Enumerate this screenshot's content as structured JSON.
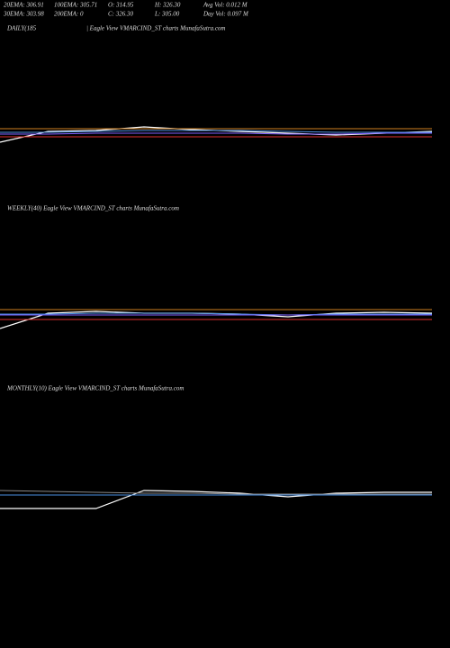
{
  "header": {
    "rows": [
      [
        "20EMA: 306.91",
        "100EMA: 305.71",
        "O: 314.95",
        "H: 326.30",
        "Avg Vol: 0.012  M"
      ],
      [
        "30EMA: 303.98",
        "200EMA: 0",
        "C: 326.30",
        "L: 305.00",
        "Day Vol: 0.097  M"
      ]
    ]
  },
  "chart_data": [
    {
      "type": "line",
      "title": "DAILY(185",
      "subtitle": "| Eagle  View  VMARCIND_ST charts MunafaSutra.com",
      "x": [
        0,
        1,
        2,
        3,
        4,
        5,
        6,
        7,
        8,
        9
      ],
      "xlim": [
        0,
        9
      ],
      "ylim": [
        250,
        350
      ],
      "series": [
        {
          "color": "#ffffff",
          "values": [
            292,
            304,
            305,
            309,
            306,
            304,
            302,
            300,
            302,
            304
          ]
        },
        {
          "color": "#4a90e2",
          "values": [
            303,
            303,
            304,
            305,
            305,
            305,
            304,
            303,
            303,
            303
          ]
        },
        {
          "color": "#d08020",
          "values": [
            307,
            307,
            307,
            307,
            307,
            307,
            307,
            307,
            307,
            307
          ]
        },
        {
          "color": "#e03030",
          "values": [
            298,
            298,
            298,
            298,
            298,
            298,
            298,
            298,
            298,
            298
          ]
        },
        {
          "color": "#8060ff",
          "values": [
            301,
            301,
            302,
            302,
            302,
            302,
            301,
            301,
            302,
            302
          ]
        }
      ]
    },
    {
      "type": "line",
      "title": "WEEKLY(40) Eagle  View  VMARCIND_ST charts MunafaSutra.com",
      "x": [
        0,
        1,
        2,
        3,
        4,
        5,
        6,
        7,
        8,
        9
      ],
      "xlim": [
        0,
        9
      ],
      "ylim": [
        250,
        350
      ],
      "series": [
        {
          "color": "#ffffff",
          "values": [
            285,
            302,
            304,
            302,
            302,
            301,
            298,
            302,
            303,
            302
          ]
        },
        {
          "color": "#4a90e2",
          "values": [
            301,
            301,
            302,
            302,
            302,
            301,
            300,
            301,
            301,
            301
          ]
        },
        {
          "color": "#d08020",
          "values": [
            306,
            306,
            306,
            306,
            306,
            306,
            306,
            306,
            306,
            306
          ]
        },
        {
          "color": "#e03030",
          "values": [
            295,
            295,
            295,
            295,
            295,
            295,
            295,
            295,
            295,
            295
          ]
        },
        {
          "color": "#8060ff",
          "values": [
            300,
            300,
            300,
            300,
            300,
            300,
            300,
            300,
            300,
            300
          ]
        }
      ]
    },
    {
      "type": "line",
      "title": "MONTHLY(10) Eagle  View  VMARCIND_ST charts MunafaSutra.com",
      "x": [
        0,
        1,
        2,
        3,
        4,
        5,
        6,
        7,
        8,
        9
      ],
      "xlim": [
        0,
        9
      ],
      "ylim": [
        250,
        350
      ],
      "series": [
        {
          "color": "#ffffff",
          "values": [
            285,
            285,
            285,
            305,
            304,
            302,
            298,
            302,
            303,
            303
          ]
        },
        {
          "color": "#4a90e2",
          "values": [
            300,
            300,
            300,
            300,
            300,
            300,
            300,
            300,
            300,
            300
          ]
        },
        {
          "color": "#888888",
          "values": [
            305,
            304,
            303,
            302,
            302,
            301,
            301,
            301,
            301,
            301
          ]
        }
      ]
    }
  ]
}
